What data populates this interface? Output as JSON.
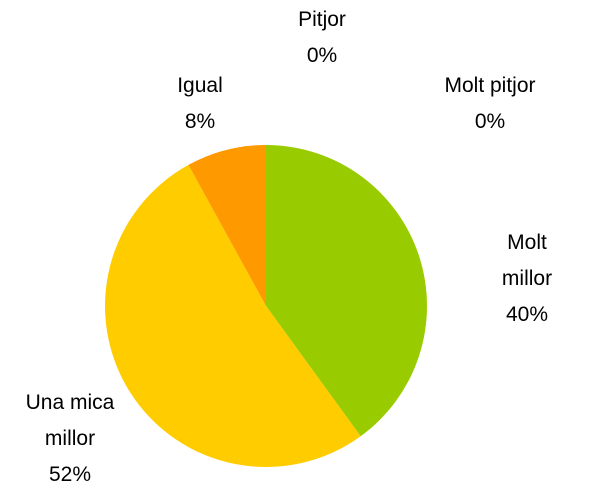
{
  "chart_data": {
    "type": "pie",
    "categories": [
      "Molt millor",
      "Una mica millor",
      "Igual",
      "Pitjor",
      "Molt pitjor"
    ],
    "values": [
      40,
      52,
      8,
      0,
      0
    ],
    "value_labels": [
      "40%",
      "52%",
      "8%",
      "0%",
      "0%"
    ],
    "colors": [
      "#99cc00",
      "#ffcc00",
      "#ff9900",
      "#ff6600",
      "#cc3300"
    ]
  }
}
